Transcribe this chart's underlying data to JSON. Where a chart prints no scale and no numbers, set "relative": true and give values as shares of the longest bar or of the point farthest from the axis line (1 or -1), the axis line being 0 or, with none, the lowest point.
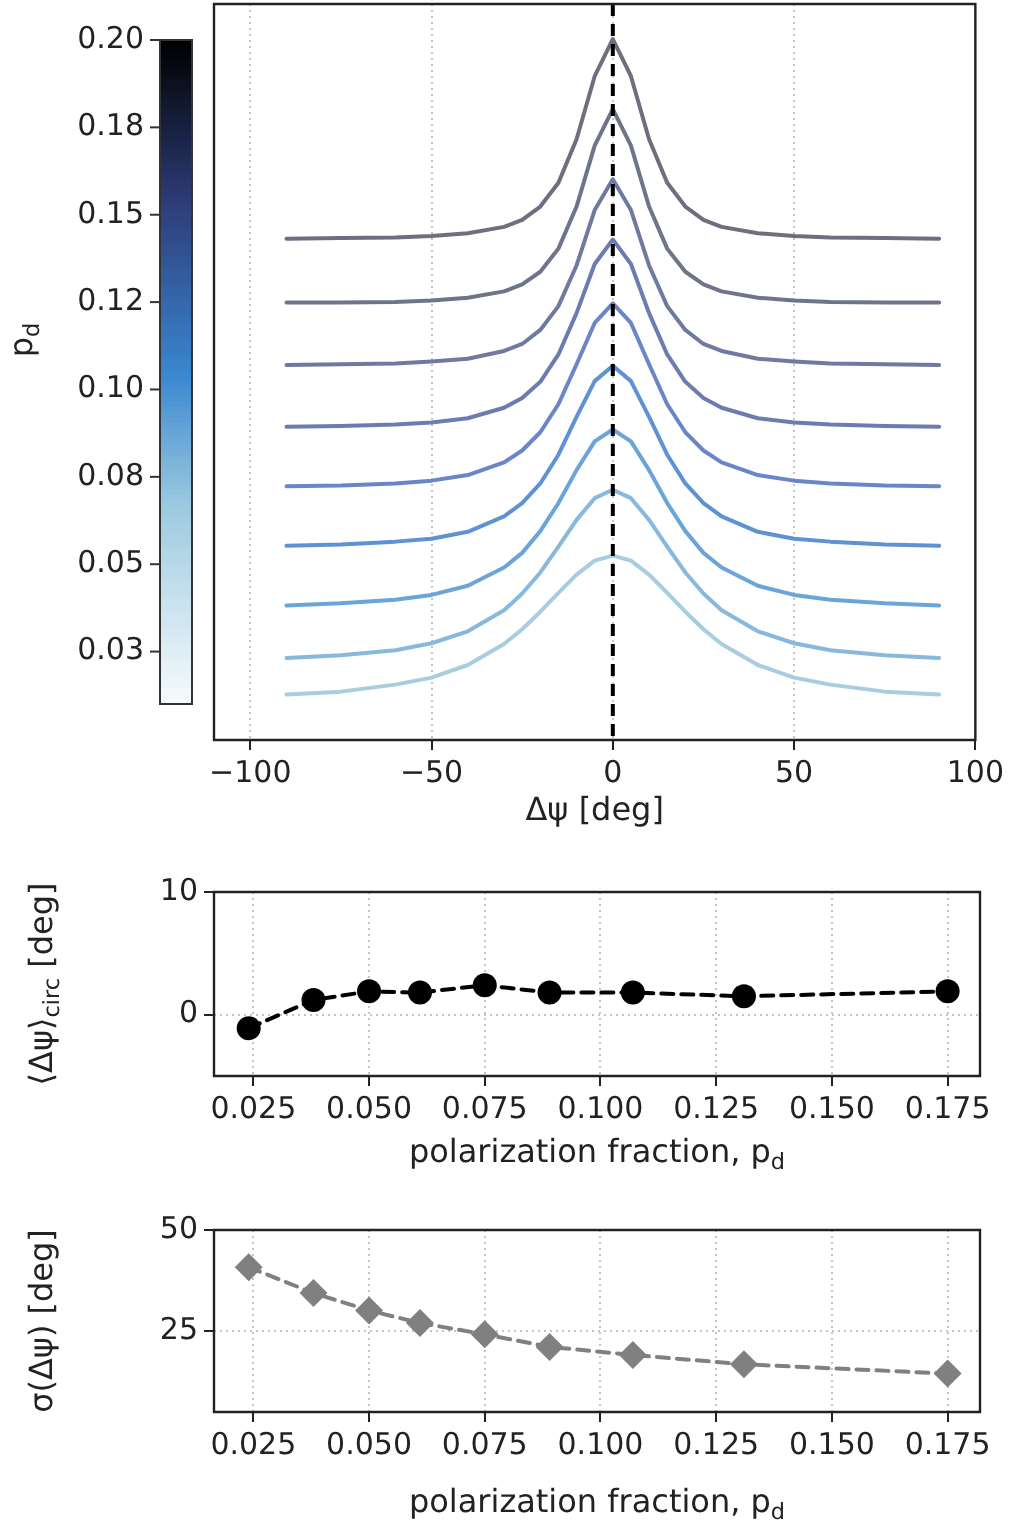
{
  "chart_data": [
    {
      "type": "line",
      "relative": true,
      "xlabel": "Δψ [deg]",
      "xlim": [
        -110,
        100
      ],
      "xticks": [
        {
          "value": -100,
          "label": "−100"
        },
        {
          "value": -50,
          "label": "−50"
        },
        0,
        50,
        100
      ],
      "grid": "x",
      "tick_labels": "x",
      "clabel": "p$_{d}$",
      "clim": [
        0.01,
        0.2
      ],
      "cticks": [
        {
          "value": 0.025,
          "label": "0.03"
        },
        {
          "value": 0.05,
          "label": "0.05"
        },
        {
          "value": 0.075,
          "label": "0.08"
        },
        {
          "value": 0.1,
          "label": "0.10"
        },
        {
          "value": 0.125,
          "label": "0.12"
        },
        {
          "value": 0.15,
          "label": "0.15"
        },
        {
          "value": 0.175,
          "label": "0.18"
        },
        {
          "value": 0.2,
          "label": "0.20"
        }
      ],
      "ref_lines": [
        {
          "axis": "x",
          "value": 0,
          "color": "#000000",
          "line_style": "dashed"
        }
      ],
      "x": [
        -90,
        -75,
        -60,
        -50,
        -40,
        -30,
        -25,
        -20,
        -15,
        -10,
        -5,
        0,
        5,
        10,
        15,
        20,
        25,
        30,
        40,
        50,
        60,
        75,
        90
      ],
      "series": [
        {
          "color": "#6e6e80",
          "values": [
            0.715,
            0.716,
            0.717,
            0.719,
            0.723,
            0.732,
            0.742,
            0.761,
            0.795,
            0.857,
            0.947,
            1.0,
            0.947,
            0.857,
            0.795,
            0.761,
            0.742,
            0.732,
            0.723,
            0.719,
            0.717,
            0.716,
            0.715
          ]
        },
        {
          "color": "#70748a",
          "values": [
            0.624,
            0.624,
            0.625,
            0.627,
            0.631,
            0.64,
            0.65,
            0.668,
            0.701,
            0.761,
            0.848,
            0.9,
            0.848,
            0.761,
            0.701,
            0.668,
            0.65,
            0.64,
            0.631,
            0.627,
            0.625,
            0.624,
            0.624
          ]
        },
        {
          "color": "#6f7aa0",
          "values": [
            0.535,
            0.536,
            0.537,
            0.54,
            0.544,
            0.555,
            0.565,
            0.585,
            0.619,
            0.677,
            0.756,
            0.8,
            0.756,
            0.677,
            0.619,
            0.585,
            0.565,
            0.555,
            0.544,
            0.54,
            0.537,
            0.536,
            0.535
          ]
        },
        {
          "color": "#6c7cb0",
          "values": [
            0.447,
            0.448,
            0.45,
            0.453,
            0.459,
            0.474,
            0.488,
            0.511,
            0.55,
            0.609,
            0.679,
            0.714,
            0.679,
            0.609,
            0.55,
            0.511,
            0.488,
            0.474,
            0.459,
            0.453,
            0.45,
            0.448,
            0.447
          ]
        },
        {
          "color": "#6a86c8",
          "values": [
            0.362,
            0.363,
            0.366,
            0.37,
            0.378,
            0.396,
            0.413,
            0.439,
            0.479,
            0.536,
            0.595,
            0.623,
            0.595,
            0.536,
            0.479,
            0.439,
            0.413,
            0.396,
            0.378,
            0.37,
            0.366,
            0.363,
            0.362
          ]
        },
        {
          "color": "#5f92d4",
          "values": [
            0.277,
            0.279,
            0.283,
            0.287,
            0.297,
            0.319,
            0.338,
            0.366,
            0.407,
            0.461,
            0.512,
            0.534,
            0.512,
            0.461,
            0.407,
            0.366,
            0.338,
            0.319,
            0.297,
            0.287,
            0.283,
            0.279,
            0.277
          ]
        },
        {
          "color": "#6aa4d8",
          "values": [
            0.192,
            0.195,
            0.2,
            0.207,
            0.22,
            0.246,
            0.267,
            0.298,
            0.338,
            0.385,
            0.426,
            0.443,
            0.426,
            0.385,
            0.338,
            0.298,
            0.267,
            0.246,
            0.22,
            0.207,
            0.2,
            0.195,
            0.192
          ]
        },
        {
          "color": "#88b8dc",
          "values": [
            0.117,
            0.121,
            0.128,
            0.138,
            0.155,
            0.185,
            0.209,
            0.239,
            0.276,
            0.314,
            0.345,
            0.357,
            0.345,
            0.314,
            0.276,
            0.239,
            0.209,
            0.185,
            0.155,
            0.138,
            0.128,
            0.121,
            0.117
          ]
        },
        {
          "color": "#a8cce0",
          "values": [
            0.065,
            0.069,
            0.079,
            0.089,
            0.107,
            0.137,
            0.158,
            0.183,
            0.21,
            0.236,
            0.256,
            0.263,
            0.256,
            0.236,
            0.21,
            0.183,
            0.158,
            0.137,
            0.107,
            0.089,
            0.079,
            0.069,
            0.065
          ]
        }
      ]
    },
    {
      "type": "line",
      "xlabel": "polarization fraction, p$_{d}$",
      "ylabel": "⟨Δψ⟩$_{circ}$ [deg]",
      "xlim": [
        0.0165,
        0.182
      ],
      "xticks": [
        0.025,
        {
          "value": 0.05,
          "label": "0.050"
        },
        0.075,
        {
          "value": 0.1,
          "label": "0.100"
        },
        0.125,
        {
          "value": 0.15,
          "label": "0.150"
        },
        0.175
      ],
      "ylim": [
        -5,
        10
      ],
      "yticks": [
        0,
        10
      ],
      "grid": true,
      "marker": "circle",
      "line_style": "dashed",
      "x": [
        0.024,
        0.038,
        0.05,
        0.061,
        0.075,
        0.089,
        0.107,
        0.131,
        0.175
      ],
      "series": [
        {
          "color": "#000000",
          "values": [
            -1.1,
            1.2,
            1.9,
            1.8,
            2.4,
            1.8,
            1.8,
            1.5,
            1.9
          ]
        }
      ]
    },
    {
      "type": "line",
      "xlabel": "polarization fraction, p$_{d}$",
      "ylabel": "σ(Δψ) [deg]",
      "xlim": [
        0.0165,
        0.182
      ],
      "xticks": [
        0.025,
        {
          "value": 0.05,
          "label": "0.050"
        },
        0.075,
        {
          "value": 0.1,
          "label": "0.100"
        },
        0.125,
        {
          "value": 0.15,
          "label": "0.150"
        },
        0.175
      ],
      "ylim": [
        5,
        50
      ],
      "yticks": [
        25,
        50
      ],
      "grid": true,
      "marker": "diamond",
      "line_style": "dashed",
      "x": [
        0.024,
        0.038,
        0.05,
        0.061,
        0.075,
        0.089,
        0.107,
        0.131,
        0.175
      ],
      "series": [
        {
          "color": "#808080",
          "values": [
            40.8,
            34.4,
            30.1,
            27.0,
            24.2,
            21.1,
            19.1,
            16.8,
            14.5
          ]
        }
      ]
    }
  ]
}
